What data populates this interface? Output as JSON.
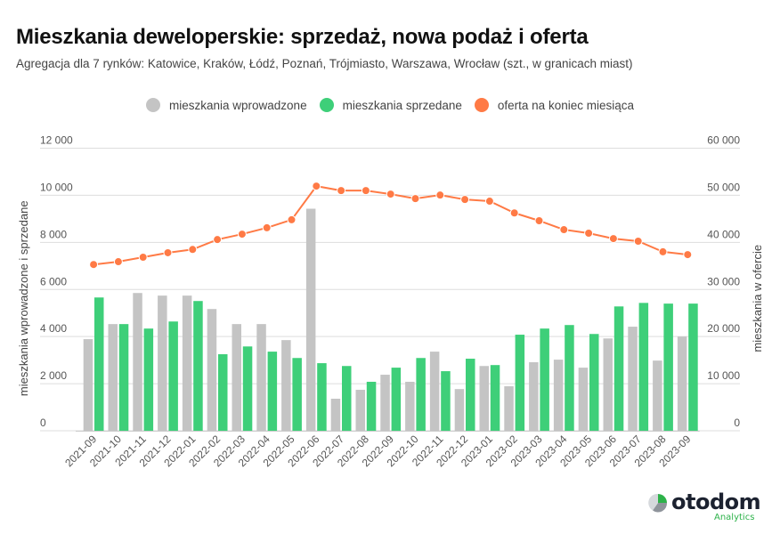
{
  "header": {
    "title": "Mieszkania deweloperskie: sprzedaż, nowa podaż i oferta",
    "subtitle": "Agregacja dla 7 rynków: Katowice, Kraków, Łódź, Poznań, Trójmiasto, Warszawa, Wrocław (szt., w granicach miast)"
  },
  "colors": {
    "introduced": "#c4c4c4",
    "sold": "#3ecf79",
    "offer": "#ff7a45",
    "grid": "#dddddd"
  },
  "logo": {
    "icon": "pie-chart-icon",
    "name": "otodom",
    "sub": "Analytics"
  },
  "chart_data": {
    "type": "bar",
    "title": "Mieszkania deweloperskie: sprzedaż, nowa podaż i oferta",
    "xlabel": "",
    "ylabel": "mieszkania wprowadzone i sprzedane",
    "y2label": "mieszkania w ofercie",
    "ylim": [
      0,
      12000
    ],
    "y2lim": [
      0,
      60000
    ],
    "yticks": [
      0,
      2000,
      4000,
      6000,
      8000,
      10000,
      12000
    ],
    "y2ticks": [
      0,
      10000,
      20000,
      30000,
      40000,
      50000,
      60000
    ],
    "ytick_labels": [
      "0",
      "2 000",
      "4 000",
      "6 000",
      "8 000",
      "10 000",
      "12 000"
    ],
    "y2tick_labels": [
      "0",
      "10 000",
      "20 000",
      "30 000",
      "40 000",
      "50 000",
      "60 000"
    ],
    "grid": true,
    "legend_position": "top-center",
    "categories": [
      "2021-09",
      "2021-10",
      "2021-11",
      "2021-12",
      "2022-01",
      "2022-02",
      "2022-03",
      "2022-04",
      "2022-05",
      "2022-06",
      "2022-07",
      "2022-08",
      "2022-09",
      "2022-10",
      "2022-11",
      "2022-12",
      "2023-01",
      "2023-02",
      "2023-03",
      "2023-04",
      "2023-05",
      "2023-06",
      "2023-07",
      "2023-08",
      "2023-09"
    ],
    "series": [
      {
        "name": "mieszkania wprowadzone",
        "type": "bar",
        "axis": "left",
        "values": [
          3890,
          4530,
          5850,
          5740,
          5740,
          5170,
          4530,
          4530,
          3850,
          9430,
          1360,
          1740,
          2380,
          2080,
          3360,
          1770,
          2750,
          1890,
          2910,
          3020,
          2680,
          3920,
          4420,
          2980,
          4000
        ]
      },
      {
        "name": "mieszkania sprzedane",
        "type": "bar",
        "axis": "left",
        "values": [
          5660,
          4530,
          4340,
          4640,
          5510,
          3250,
          3580,
          3360,
          3090,
          2870,
          2750,
          2080,
          2680,
          3090,
          2530,
          3060,
          2790,
          4080,
          4340,
          4490,
          4110,
          5280,
          5430,
          5400,
          5400
        ]
      },
      {
        "name": "oferta na koniec miesiąca",
        "type": "line",
        "axis": "right",
        "values": [
          35300,
          35900,
          36850,
          37800,
          38500,
          40600,
          41750,
          43100,
          44800,
          51950,
          51000,
          51000,
          50250,
          49300,
          50050,
          49100,
          48750,
          46250,
          44600,
          42700,
          41950,
          40800,
          40250,
          38000,
          37400
        ]
      }
    ]
  }
}
